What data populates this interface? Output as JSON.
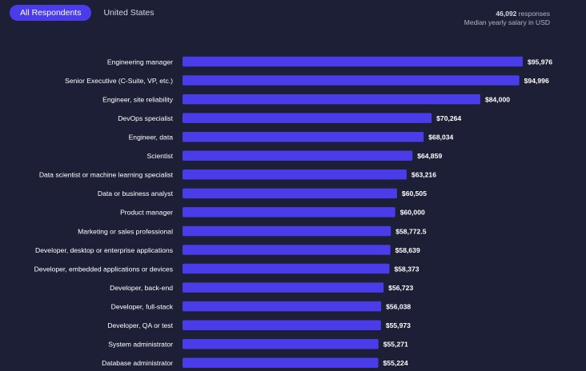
{
  "tabs": [
    {
      "label": "All Respondents",
      "active": true
    },
    {
      "label": "United States",
      "active": false
    }
  ],
  "meta": {
    "responses_count": "46,092",
    "responses_label": "responses",
    "subtitle": "Median yearly salary in USD"
  },
  "colors": {
    "background": "#1d1f36",
    "bar": "#4a3ce8",
    "active_tab": "#4a3ce8"
  },
  "chart_data": {
    "type": "bar",
    "orientation": "horizontal",
    "categories": [
      "Engineering manager",
      "Senior Executive (C-Suite, VP, etc.)",
      "Engineer, site reliability",
      "DevOps specialist",
      "Engineer, data",
      "Scientist",
      "Data scientist or machine learning specialist",
      "Data or business analyst",
      "Product manager",
      "Marketing or sales professional",
      "Developer, desktop or enterprise applications",
      "Developer, embedded applications or devices",
      "Developer, back-end",
      "Developer, full-stack",
      "Developer, QA or test",
      "System administrator",
      "Database administrator"
    ],
    "values": [
      95976,
      94996,
      84000,
      70264,
      68034,
      64859,
      63216,
      60505,
      60000,
      58772.5,
      58639,
      58373,
      56723,
      56038,
      55973,
      55271,
      55224
    ],
    "value_labels": [
      "$95,976",
      "$94,996",
      "$84,000",
      "$70,264",
      "$68,034",
      "$64,859",
      "$63,216",
      "$60,505",
      "$60,000",
      "$58,772.5",
      "$58,639",
      "$58,373",
      "$56,723",
      "$56,038",
      "$55,973",
      "$55,271",
      "$55,224"
    ],
    "xlim": [
      0,
      95976
    ],
    "grid": false,
    "legend": "none"
  }
}
